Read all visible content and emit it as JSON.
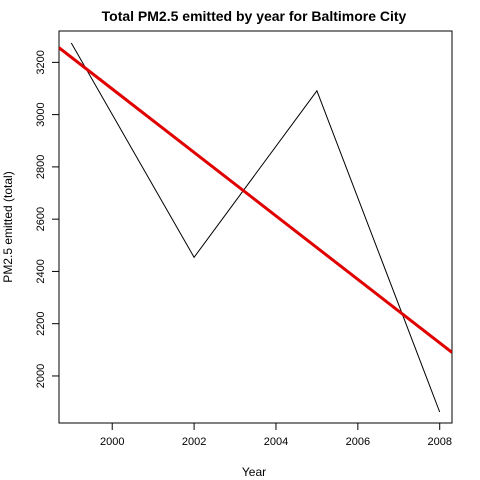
{
  "chart_data": {
    "type": "line",
    "title": "Total PM2.5 emitted by year for Baltimore City",
    "xlabel": "Year",
    "ylabel": "PM2.5 emitted (total)",
    "xlim": [
      1998.7,
      2008.3
    ],
    "ylim": [
      1820,
      3320
    ],
    "x_ticks": [
      2000,
      2002,
      2004,
      2006,
      2008
    ],
    "y_ticks": [
      2000,
      2200,
      2400,
      2600,
      2800,
      3000,
      3200
    ],
    "grid": false,
    "series": [
      {
        "x": [
          1999,
          2002,
          2005,
          2008
        ],
        "y": [
          3274,
          2454,
          3091,
          1862
        ],
        "color": "#000000"
      },
      {
        "kind": "trend",
        "x": [
          1998.7,
          2008.3
        ],
        "y": [
          3256,
          2090
        ],
        "color": "#e00000"
      }
    ]
  }
}
